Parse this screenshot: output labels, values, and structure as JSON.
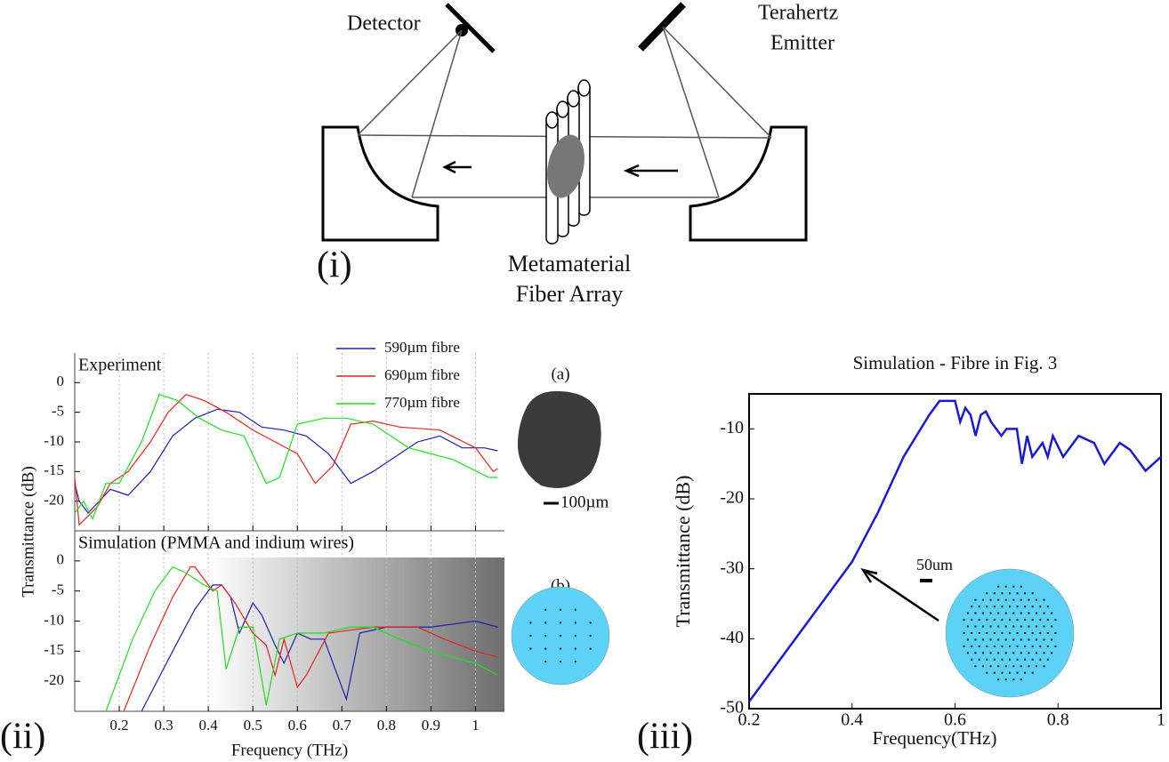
{
  "diagram": {
    "detector_label": "Detector",
    "emitter_label": [
      "Terahertz",
      "Emitter"
    ],
    "array_label": [
      "Metamaterial",
      "Fiber Array"
    ],
    "panel_labels": [
      "(i)",
      "(ii)",
      "(iii)"
    ],
    "inset_labels": [
      "(a)",
      "(b)"
    ],
    "scale_labels": [
      "100µm",
      "50um"
    ]
  },
  "chart_data": [
    {
      "type": "line",
      "title": "Experiment",
      "ylabel": "Transmittance (dB)",
      "xlim": [
        0.1,
        1.065
      ],
      "ylim": [
        -25,
        5
      ],
      "yticks": [
        0,
        -5,
        -10,
        -15,
        -20
      ],
      "legend": "upper right",
      "grid": true,
      "series": [
        {
          "name": "590µm fibre",
          "color": "#1f1fb4",
          "x": [
            0.1,
            0.11,
            0.13,
            0.18,
            0.22,
            0.27,
            0.32,
            0.37,
            0.42,
            0.47,
            0.52,
            0.57,
            0.62,
            0.67,
            0.72,
            0.77,
            0.87,
            0.92,
            0.97,
            1.02,
            1.05
          ],
          "values": [
            -17,
            -20,
            -22,
            -18,
            -19,
            -15,
            -9,
            -6,
            -4.5,
            -5,
            -7.5,
            -8,
            -9,
            -12,
            -17,
            -15,
            -10,
            -9,
            -11,
            -11,
            -11.5
          ]
        },
        {
          "name": "690µm fibre",
          "color": "#e8231e",
          "x": [
            0.1,
            0.11,
            0.15,
            0.18,
            0.22,
            0.27,
            0.31,
            0.35,
            0.39,
            0.44,
            0.5,
            0.55,
            0.6,
            0.64,
            0.68,
            0.72,
            0.77,
            0.83,
            0.92,
            1.0,
            1.04,
            1.05
          ],
          "values": [
            -16,
            -24,
            -21,
            -17,
            -15,
            -10,
            -5,
            -2,
            -3,
            -5,
            -8,
            -10,
            -12,
            -17,
            -14,
            -7,
            -6.5,
            -7.5,
            -8,
            -11,
            -15,
            -14.5
          ]
        },
        {
          "name": "770µm fibre",
          "color": "#1ee01e",
          "x": [
            0.1,
            0.12,
            0.14,
            0.17,
            0.2,
            0.25,
            0.29,
            0.33,
            0.38,
            0.43,
            0.48,
            0.53,
            0.56,
            0.6,
            0.66,
            0.71,
            0.77,
            0.85,
            0.95,
            1.03,
            1.05
          ],
          "values": [
            -22,
            -20,
            -23,
            -17,
            -17,
            -10,
            -2,
            -3,
            -6,
            -8,
            -9,
            -17,
            -16,
            -7,
            -6,
            -6,
            -7,
            -11,
            -13,
            -16,
            -16
          ]
        }
      ]
    },
    {
      "type": "line",
      "title": "Simulation (PMMA and indium wires)",
      "xlabel": "Frequency (THz)",
      "xlim": [
        0.1,
        1.065
      ],
      "ylim": [
        -25,
        5
      ],
      "xticks": [
        0.2,
        0.3,
        0.4,
        0.5,
        0.6,
        0.7,
        0.8,
        0.9,
        1
      ],
      "yticks": [
        0,
        -5,
        -10,
        -15,
        -20
      ],
      "grid": true,
      "series": [
        {
          "color": "#1f1fb4",
          "x": [
            0.25,
            0.32,
            0.37,
            0.41,
            0.43,
            0.45,
            0.47,
            0.5,
            0.52,
            0.55,
            0.57,
            0.6,
            0.63,
            0.66,
            0.71,
            0.74,
            0.8,
            0.9,
            1.0,
            1.05
          ],
          "values": [
            -25,
            -15,
            -8,
            -4,
            -4,
            -6,
            -12,
            -7,
            -9,
            -14,
            -17,
            -12,
            -13,
            -13,
            -23,
            -12,
            -11,
            -11,
            -10,
            -11
          ]
        },
        {
          "color": "#e8231e",
          "x": [
            0.21,
            0.27,
            0.32,
            0.36,
            0.37,
            0.41,
            0.43,
            0.46,
            0.5,
            0.53,
            0.55,
            0.57,
            0.6,
            0.62,
            0.67,
            0.77,
            0.87,
            0.93,
            1.0,
            1.05
          ],
          "values": [
            -25,
            -14,
            -6,
            -1,
            -1,
            -5,
            -4,
            -7,
            -12,
            -14,
            -19,
            -13,
            -21,
            -19,
            -12,
            -11,
            -11,
            -13,
            -15,
            -16
          ]
        },
        {
          "color": "#1ee01e",
          "x": [
            0.17,
            0.23,
            0.28,
            0.32,
            0.35,
            0.39,
            0.42,
            0.44,
            0.47,
            0.5,
            0.53,
            0.56,
            0.6,
            0.66,
            0.72,
            0.77,
            0.83,
            0.9,
            1.0,
            1.05
          ],
          "values": [
            -25,
            -13,
            -5,
            -1,
            -2,
            -4,
            -5,
            -18,
            -11,
            -11,
            -24,
            -13,
            -12,
            -12,
            -11,
            -11,
            -13,
            -15,
            -17,
            -19
          ]
        }
      ]
    },
    {
      "type": "line",
      "title": "Simulation - Fibre in Fig. 3",
      "xlabel": "Frequency(THz)",
      "ylabel": "Transmittance (dB)",
      "xlim": [
        0.2,
        1
      ],
      "ylim": [
        -50,
        -5
      ],
      "xticks": [
        0.2,
        0.4,
        0.6,
        0.8,
        1
      ],
      "yticks": [
        -10,
        -20,
        -30,
        -40,
        -50
      ],
      "series": [
        {
          "color": "#1a1ad6",
          "x": [
            0.2,
            0.3,
            0.4,
            0.45,
            0.5,
            0.55,
            0.57,
            0.6,
            0.61,
            0.62,
            0.63,
            0.64,
            0.65,
            0.66,
            0.67,
            0.69,
            0.7,
            0.72,
            0.73,
            0.74,
            0.75,
            0.77,
            0.78,
            0.79,
            0.81,
            0.84,
            0.87,
            0.89,
            0.92,
            0.94,
            0.97,
            1.0
          ],
          "values": [
            -49,
            -39,
            -29,
            -22,
            -14,
            -8,
            -6,
            -6,
            -9,
            -7,
            -8,
            -11,
            -8,
            -7.5,
            -9,
            -11,
            -10,
            -10,
            -15,
            -11,
            -14,
            -12,
            -14,
            -11,
            -14,
            -11,
            -12,
            -15,
            -12,
            -13,
            -16,
            -14
          ]
        }
      ]
    }
  ]
}
